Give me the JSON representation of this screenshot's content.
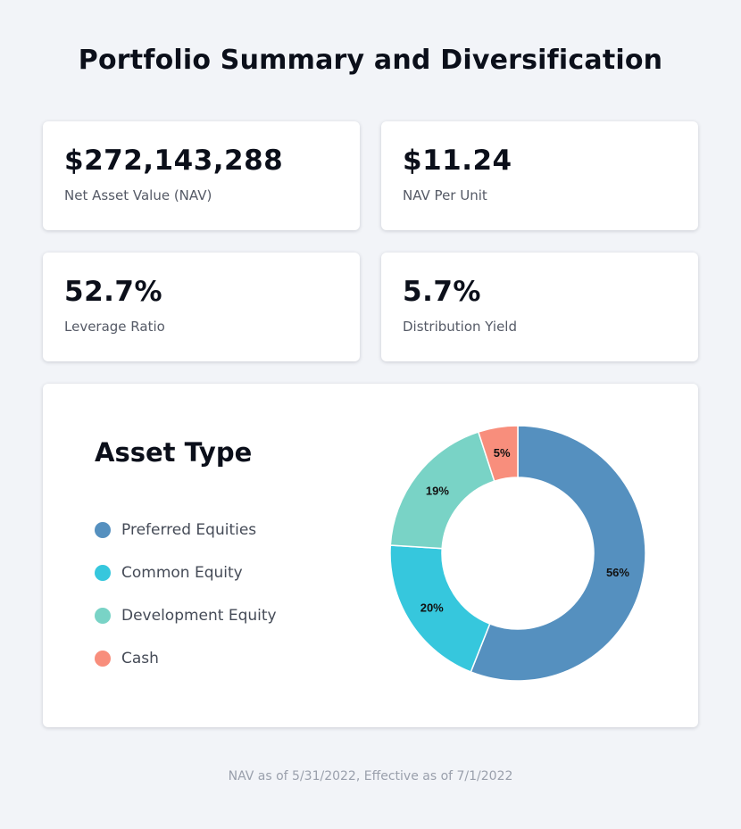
{
  "title": "Portfolio Summary and Diversification",
  "stats": [
    {
      "value": "$272,143,288",
      "label": "Net Asset Value (NAV)"
    },
    {
      "value": "$11.24",
      "label": "NAV Per Unit"
    },
    {
      "value": "52.7%",
      "label": "Leverage Ratio"
    },
    {
      "value": "5.7%",
      "label": "Distribution Yield"
    }
  ],
  "chart_data": {
    "type": "pie",
    "title": "Asset Type",
    "categories": [
      "Preferred Equities",
      "Common Equity",
      "Development Equity",
      "Cash"
    ],
    "values": [
      56,
      20,
      19,
      5
    ],
    "labels": [
      "56%",
      "20%",
      "19%",
      "5%"
    ],
    "colors": [
      "#5590bf",
      "#36c7dd",
      "#79d3c6",
      "#f88e7c"
    ],
    "legend_position": "left"
  },
  "footer": "NAV as of 5/31/2022, Effective as of 7/1/2022"
}
